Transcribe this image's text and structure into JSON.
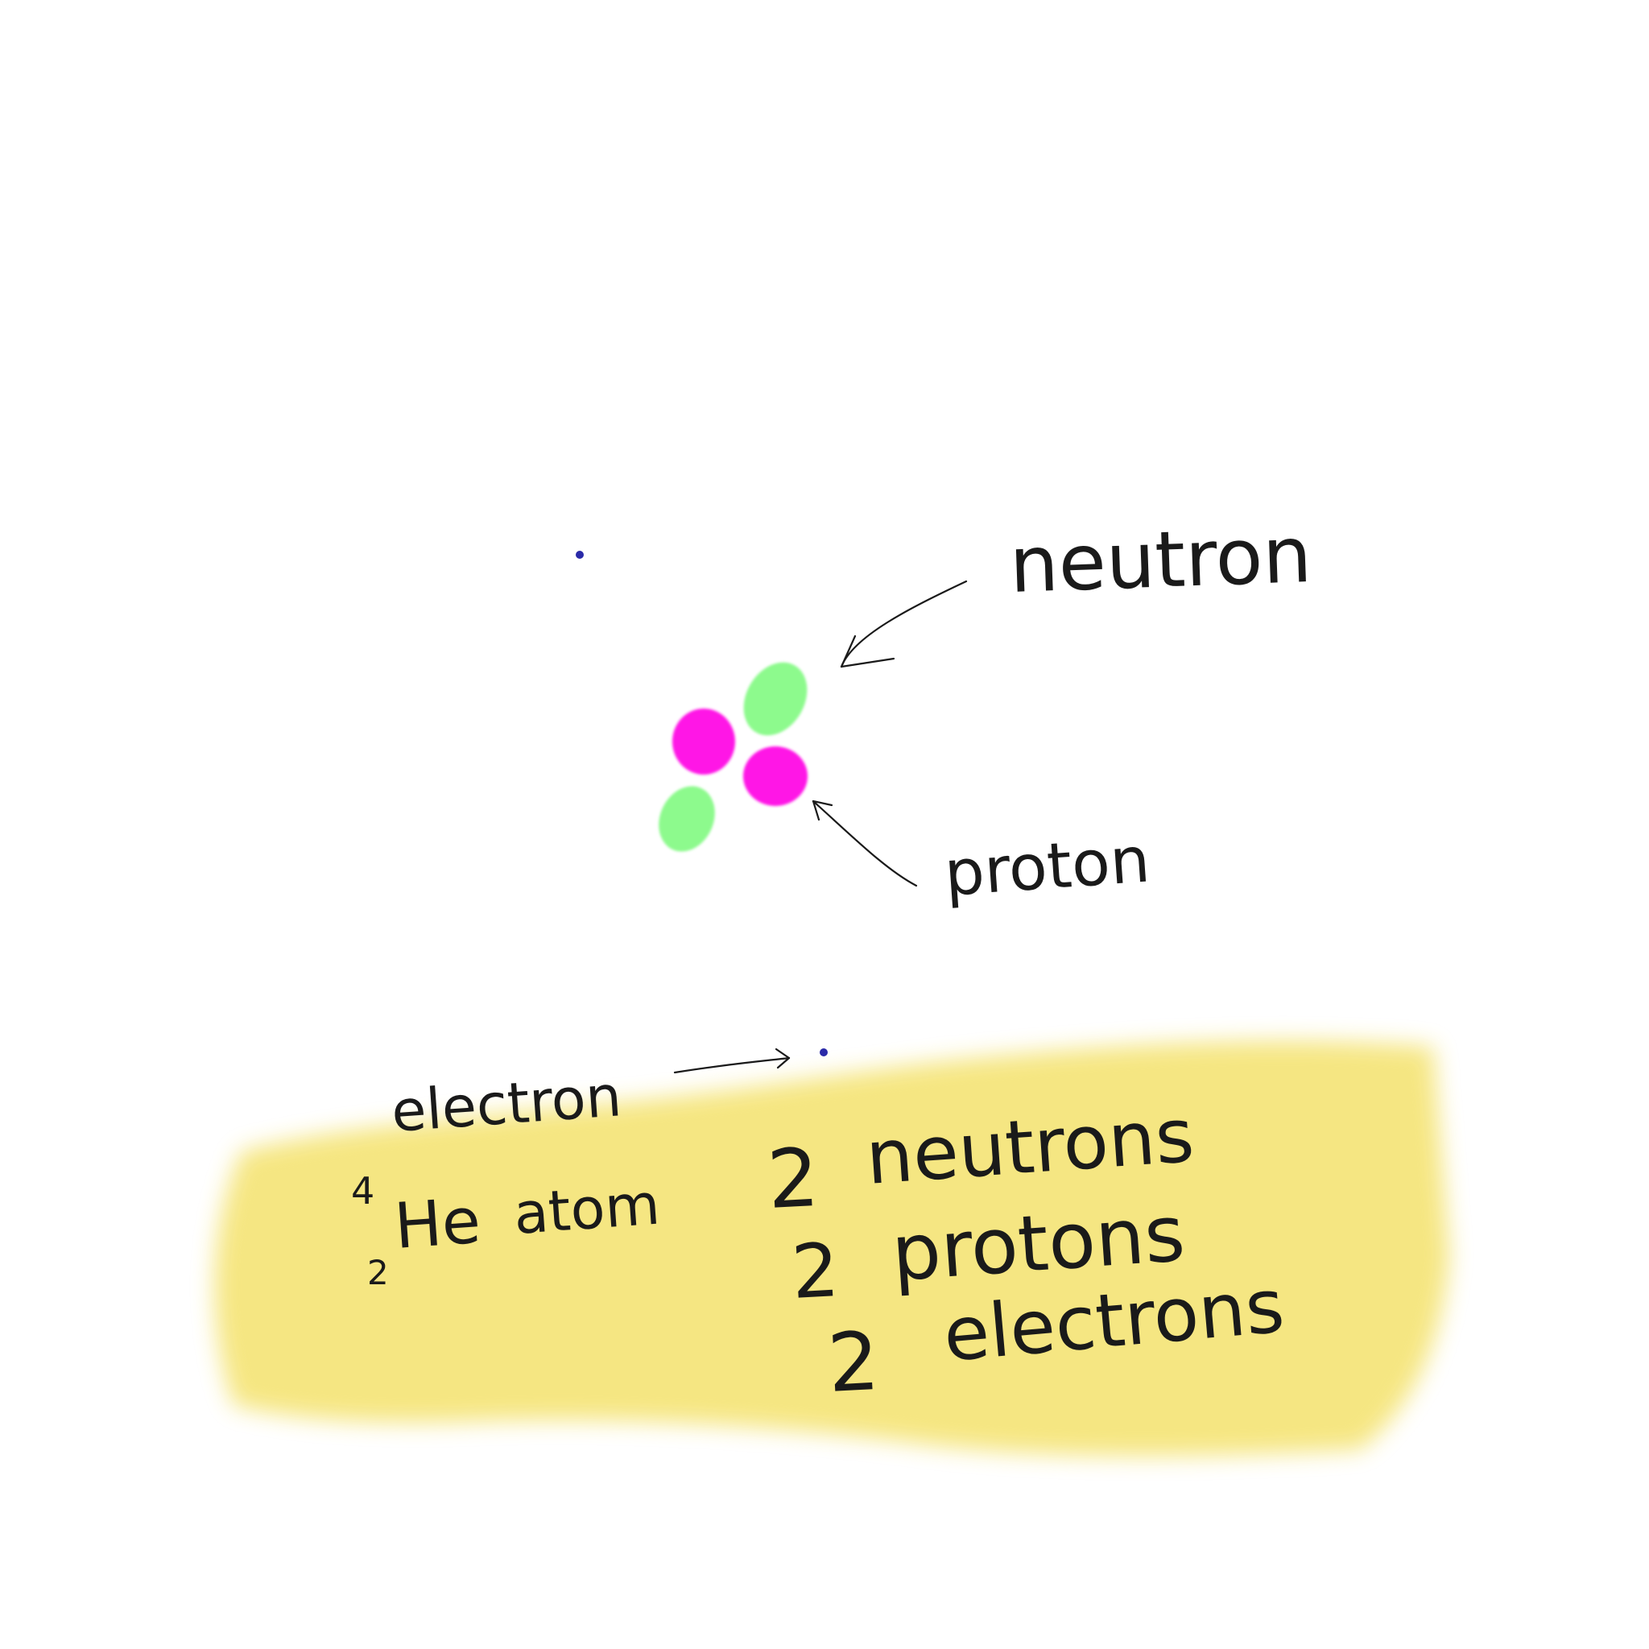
{
  "labels": {
    "neutron": "neutron",
    "proton": "proton",
    "electron": "electron"
  },
  "notation": {
    "mass_number": "4",
    "atomic_number": "2",
    "symbol": "He",
    "word": "atom"
  },
  "counts": [
    {
      "number": "2",
      "label": "neutrons"
    },
    {
      "number": "2",
      "label": "protons"
    },
    {
      "number": "2",
      "label": "electrons"
    }
  ],
  "colors": {
    "background": "#ffffff",
    "neutron": "#8dfa8d",
    "proton": "#ff14e6",
    "electron": "#2a2aa8",
    "highlight": "#f5e57c",
    "ink": "#1a1a1a"
  }
}
